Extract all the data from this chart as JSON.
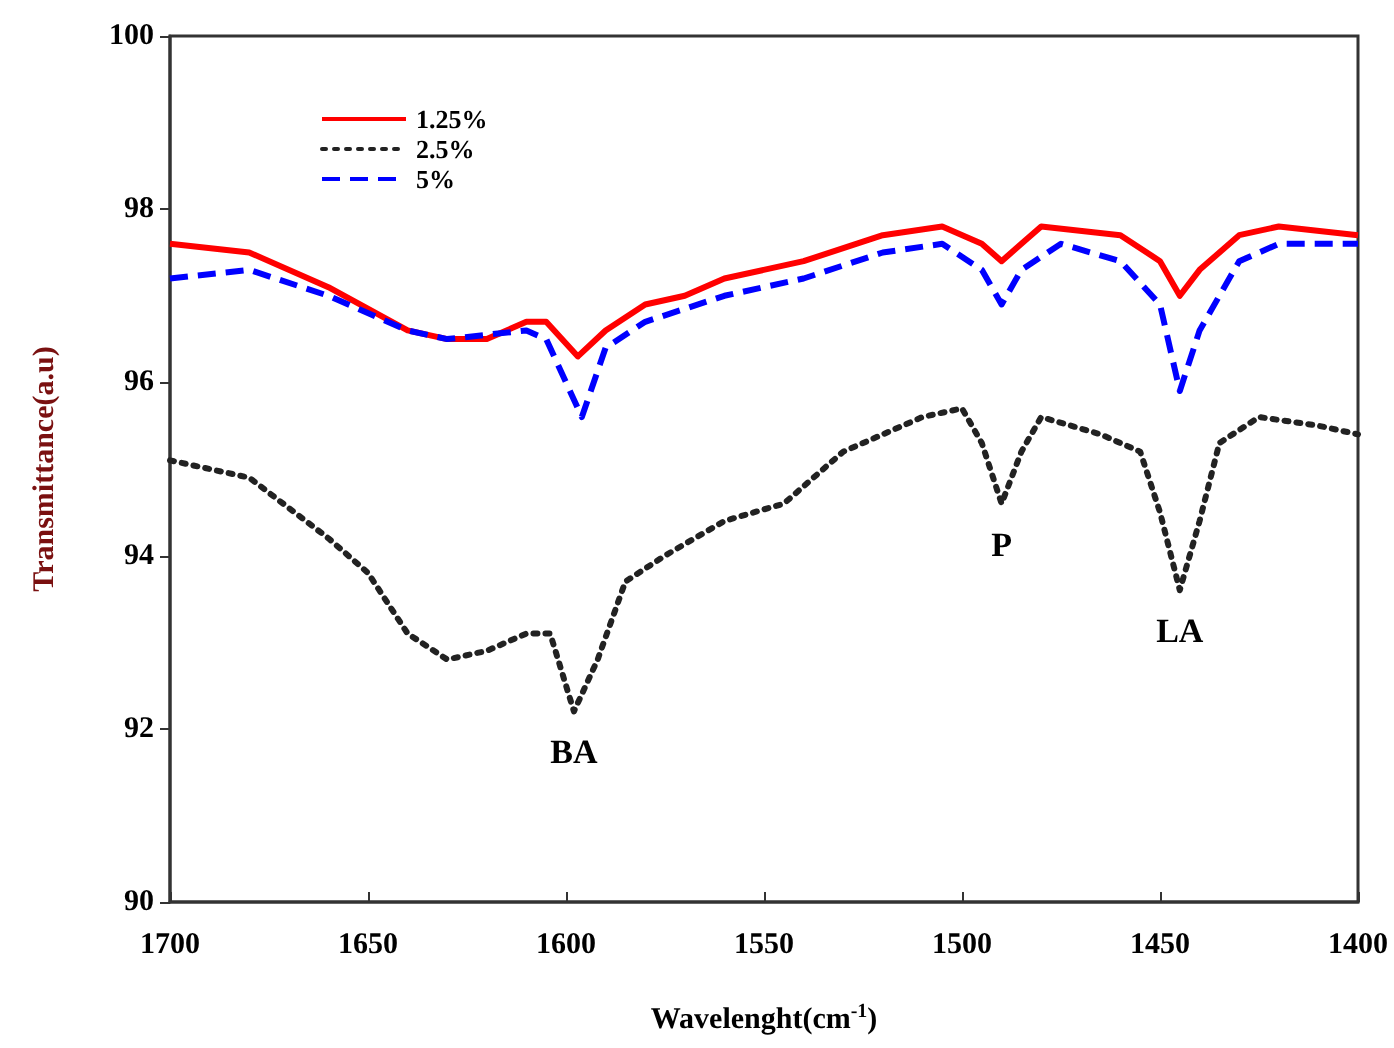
{
  "chart_data": {
    "type": "line",
    "xlabel": "Wavelenght(cm$^{-1}$)",
    "ylabel": "Transmittance(a.u)",
    "xlim": [
      1700,
      1400
    ],
    "xticks": [
      1700,
      1650,
      1600,
      1550,
      1500,
      1450,
      1400
    ],
    "ylim": [
      90,
      100
    ],
    "yticks": [
      90,
      92,
      94,
      96,
      98,
      100
    ],
    "grid": false,
    "legend": "top left",
    "marker": "none",
    "annotations": [
      {
        "text": "BA",
        "x": 1598,
        "y": 92.2
      },
      {
        "text": "P",
        "x": 1490,
        "y": 94.6
      },
      {
        "text": "LA",
        "x": 1445,
        "y": 93.6
      }
    ],
    "series": [
      {
        "name": "1.25%",
        "color": "#ff0000",
        "line_style": "solid",
        "x": [
          1700,
          1680,
          1660,
          1640,
          1630,
          1620,
          1610,
          1605,
          1597,
          1590,
          1580,
          1570,
          1560,
          1540,
          1520,
          1505,
          1495,
          1490,
          1485,
          1480,
          1460,
          1450,
          1445,
          1440,
          1430,
          1420,
          1400
        ],
        "values": [
          97.6,
          97.5,
          97.1,
          96.6,
          96.5,
          96.5,
          96.7,
          96.7,
          96.3,
          96.6,
          96.9,
          97.0,
          97.2,
          97.4,
          97.7,
          97.8,
          97.6,
          97.4,
          97.6,
          97.8,
          97.7,
          97.4,
          97.0,
          97.3,
          97.7,
          97.8,
          97.7
        ]
      },
      {
        "name": "2.5%",
        "color": "#222222",
        "line_style": "dotted",
        "x": [
          1700,
          1680,
          1660,
          1650,
          1640,
          1630,
          1620,
          1610,
          1604,
          1598,
          1592,
          1585,
          1575,
          1560,
          1545,
          1530,
          1510,
          1500,
          1495,
          1490,
          1485,
          1480,
          1465,
          1455,
          1450,
          1445,
          1440,
          1435,
          1425,
          1410,
          1400
        ],
        "values": [
          95.1,
          94.9,
          94.2,
          93.8,
          93.1,
          92.8,
          92.9,
          93.1,
          93.1,
          92.2,
          92.8,
          93.7,
          94.0,
          94.4,
          94.6,
          95.2,
          95.6,
          95.7,
          95.3,
          94.6,
          95.2,
          95.6,
          95.4,
          95.2,
          94.5,
          93.6,
          94.4,
          95.3,
          95.6,
          95.5,
          95.4
        ]
      },
      {
        "name": "5%",
        "color": "#0000ff",
        "line_style": "dashed",
        "x": [
          1700,
          1680,
          1660,
          1640,
          1630,
          1610,
          1605,
          1596,
          1590,
          1580,
          1560,
          1540,
          1520,
          1505,
          1495,
          1490,
          1485,
          1475,
          1460,
          1450,
          1445,
          1440,
          1430,
          1420,
          1400
        ],
        "values": [
          97.2,
          97.3,
          97.0,
          96.6,
          96.5,
          96.6,
          96.5,
          95.6,
          96.4,
          96.7,
          97.0,
          97.2,
          97.5,
          97.6,
          97.3,
          96.9,
          97.3,
          97.6,
          97.4,
          96.9,
          95.9,
          96.6,
          97.4,
          97.6,
          97.6
        ]
      }
    ]
  }
}
